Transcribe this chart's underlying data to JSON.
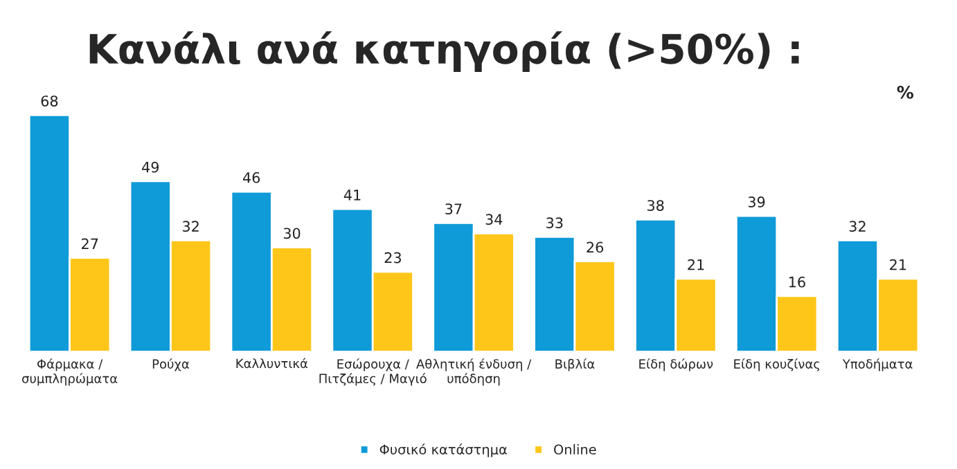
{
  "chart_data": {
    "type": "bar",
    "title": "Κανάλι ανά κατηγορία (>50%) :",
    "categories": [
      "Φάρμακα / συμπληρώματα",
      "Ρούχα",
      "Καλλυντικά",
      "Εσώρουχα / Πιτζάμες / Μαγιό",
      "Αθλητική ένδυση / υπόδηση",
      "Βιβλία",
      "Είδη δώρων",
      "Είδη κουζίνας",
      "Υποδήματα"
    ],
    "series": [
      {
        "name": "Φυσικό κατάστημα",
        "color": "#0f9ad8",
        "values": [
          68,
          49,
          46,
          41,
          37,
          33,
          38,
          39,
          32
        ]
      },
      {
        "name": "Online",
        "color": "#ffc61a",
        "values": [
          27,
          32,
          30,
          23,
          34,
          26,
          21,
          16,
          21
        ]
      }
    ],
    "data_labels": true,
    "tick_labels": "x",
    "legend": "bottom",
    "grid": false,
    "annotations": [
      "%"
    ]
  }
}
